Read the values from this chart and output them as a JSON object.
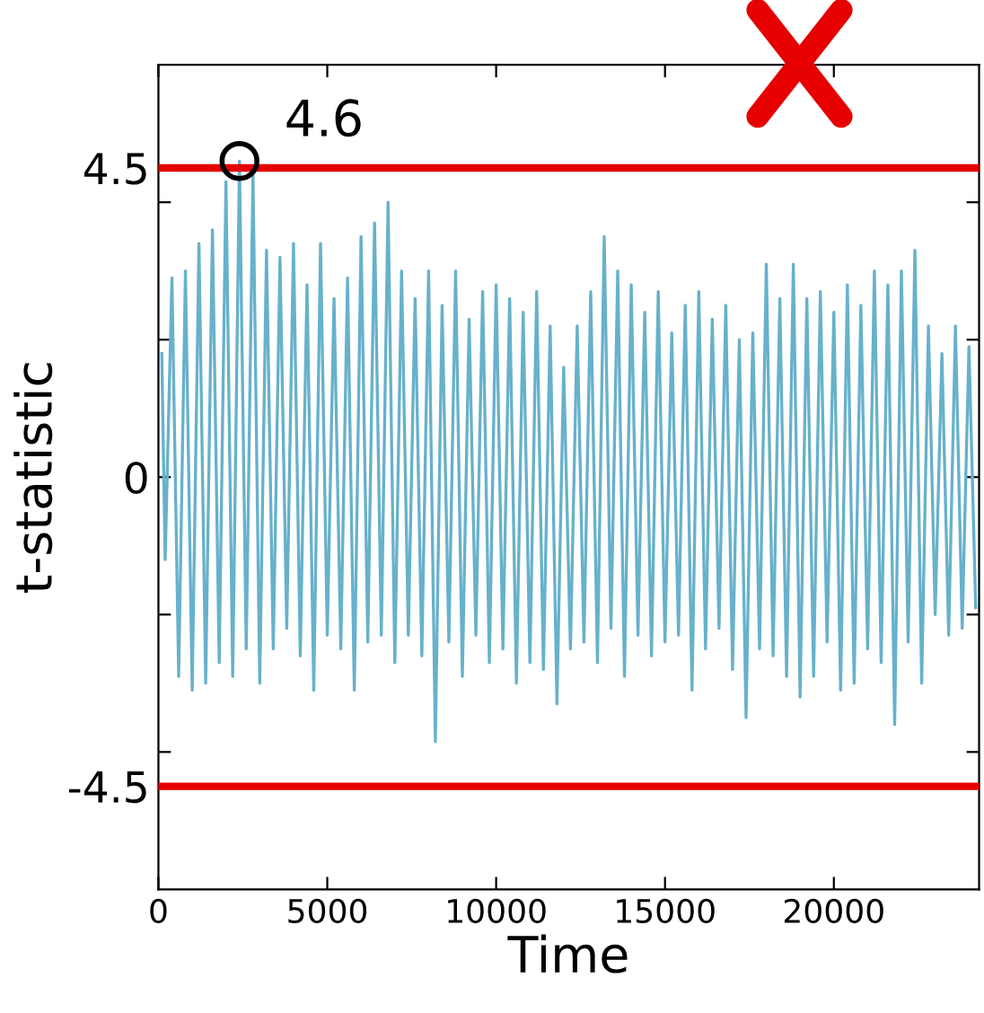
{
  "chart_data": {
    "type": "line",
    "xlabel": "Time",
    "ylabel": "t-statistic",
    "xlim": [
      0,
      24300
    ],
    "ylim": [
      -6,
      6
    ],
    "xticks": [
      0,
      5000,
      10000,
      15000,
      20000
    ],
    "yticks": [
      {
        "value": -4.5,
        "label": "-4.5"
      },
      {
        "value": -4,
        "label": null
      },
      {
        "value": -2,
        "label": null
      },
      {
        "value": 0,
        "label": "0"
      },
      {
        "value": 2,
        "label": null
      },
      {
        "value": 4,
        "label": null
      },
      {
        "value": 4.5,
        "label": "4.5"
      }
    ],
    "grid": false,
    "legend": false,
    "ref_lines": [
      {
        "axis": "y",
        "value": 4.5,
        "color": "#e60000"
      },
      {
        "axis": "y",
        "value": -4.5,
        "color": "#e60000"
      }
    ],
    "annotations": [
      {
        "text": "4.6",
        "x": 2400,
        "y": 4.6
      }
    ],
    "series": [
      {
        "color": "#67b1cb",
        "x": [
          100,
          200,
          400,
          600,
          800,
          1000,
          1200,
          1400,
          1600,
          1800,
          2000,
          2200,
          2400,
          2600,
          2800,
          3000,
          3200,
          3400,
          3600,
          3800,
          4000,
          4200,
          4400,
          4600,
          4800,
          5000,
          5200,
          5400,
          5600,
          5800,
          6000,
          6200,
          6400,
          6600,
          6800,
          7000,
          7200,
          7400,
          7600,
          7800,
          8000,
          8200,
          8400,
          8600,
          8800,
          9000,
          9200,
          9400,
          9600,
          9800,
          10000,
          10200,
          10400,
          10600,
          10800,
          11000,
          11200,
          11400,
          11600,
          11800,
          12000,
          12200,
          12400,
          12600,
          12800,
          13000,
          13200,
          13400,
          13600,
          13800,
          14000,
          14200,
          14400,
          14600,
          14800,
          15000,
          15200,
          15400,
          15600,
          15800,
          16000,
          16200,
          16400,
          16600,
          16800,
          17000,
          17200,
          17400,
          17600,
          17800,
          18000,
          18200,
          18400,
          18600,
          18800,
          19000,
          19200,
          19400,
          19600,
          19800,
          20000,
          20200,
          20400,
          20600,
          20800,
          21000,
          21200,
          21400,
          21600,
          21800,
          22000,
          22200,
          22400,
          22600,
          22800,
          23000,
          23200,
          23400,
          23600,
          23800,
          24000,
          24200
        ],
        "values": [
          1.8,
          -1.2,
          2.9,
          -2.9,
          3.0,
          -3.1,
          3.4,
          -3.0,
          3.6,
          -2.7,
          4.3,
          -2.9,
          4.6,
          -2.5,
          4.4,
          -3.0,
          3.3,
          -2.5,
          3.2,
          -2.2,
          3.4,
          -2.6,
          2.8,
          -3.1,
          3.4,
          -2.3,
          2.6,
          -2.5,
          2.9,
          -3.1,
          3.5,
          -2.4,
          3.7,
          -2.3,
          4.0,
          -2.7,
          3.0,
          -2.3,
          2.6,
          -2.6,
          3.0,
          -3.85,
          2.5,
          -2.4,
          3.0,
          -2.9,
          2.3,
          -2.3,
          2.7,
          -2.7,
          2.8,
          -2.5,
          2.6,
          -3.0,
          2.4,
          -2.7,
          2.7,
          -2.8,
          2.2,
          -3.3,
          1.6,
          -2.5,
          2.2,
          -2.4,
          2.7,
          -2.7,
          3.5,
          -2.2,
          3.0,
          -2.9,
          2.8,
          -2.3,
          2.4,
          -2.6,
          2.7,
          -2.4,
          2.1,
          -2.3,
          2.5,
          -3.1,
          2.7,
          -2.5,
          2.3,
          -2.2,
          2.5,
          -2.8,
          2.0,
          -3.5,
          2.1,
          -2.5,
          3.1,
          -2.6,
          2.6,
          -2.9,
          3.1,
          -3.2,
          2.6,
          -2.9,
          2.7,
          -2.4,
          2.4,
          -3.1,
          2.8,
          -3.0,
          2.5,
          -2.5,
          3.0,
          -2.7,
          2.8,
          -3.6,
          3.0,
          -2.4,
          3.3,
          -3.0,
          2.2,
          -2.0,
          1.8,
          -2.3,
          2.2,
          -2.2,
          1.9,
          -1.9
        ]
      }
    ]
  }
}
